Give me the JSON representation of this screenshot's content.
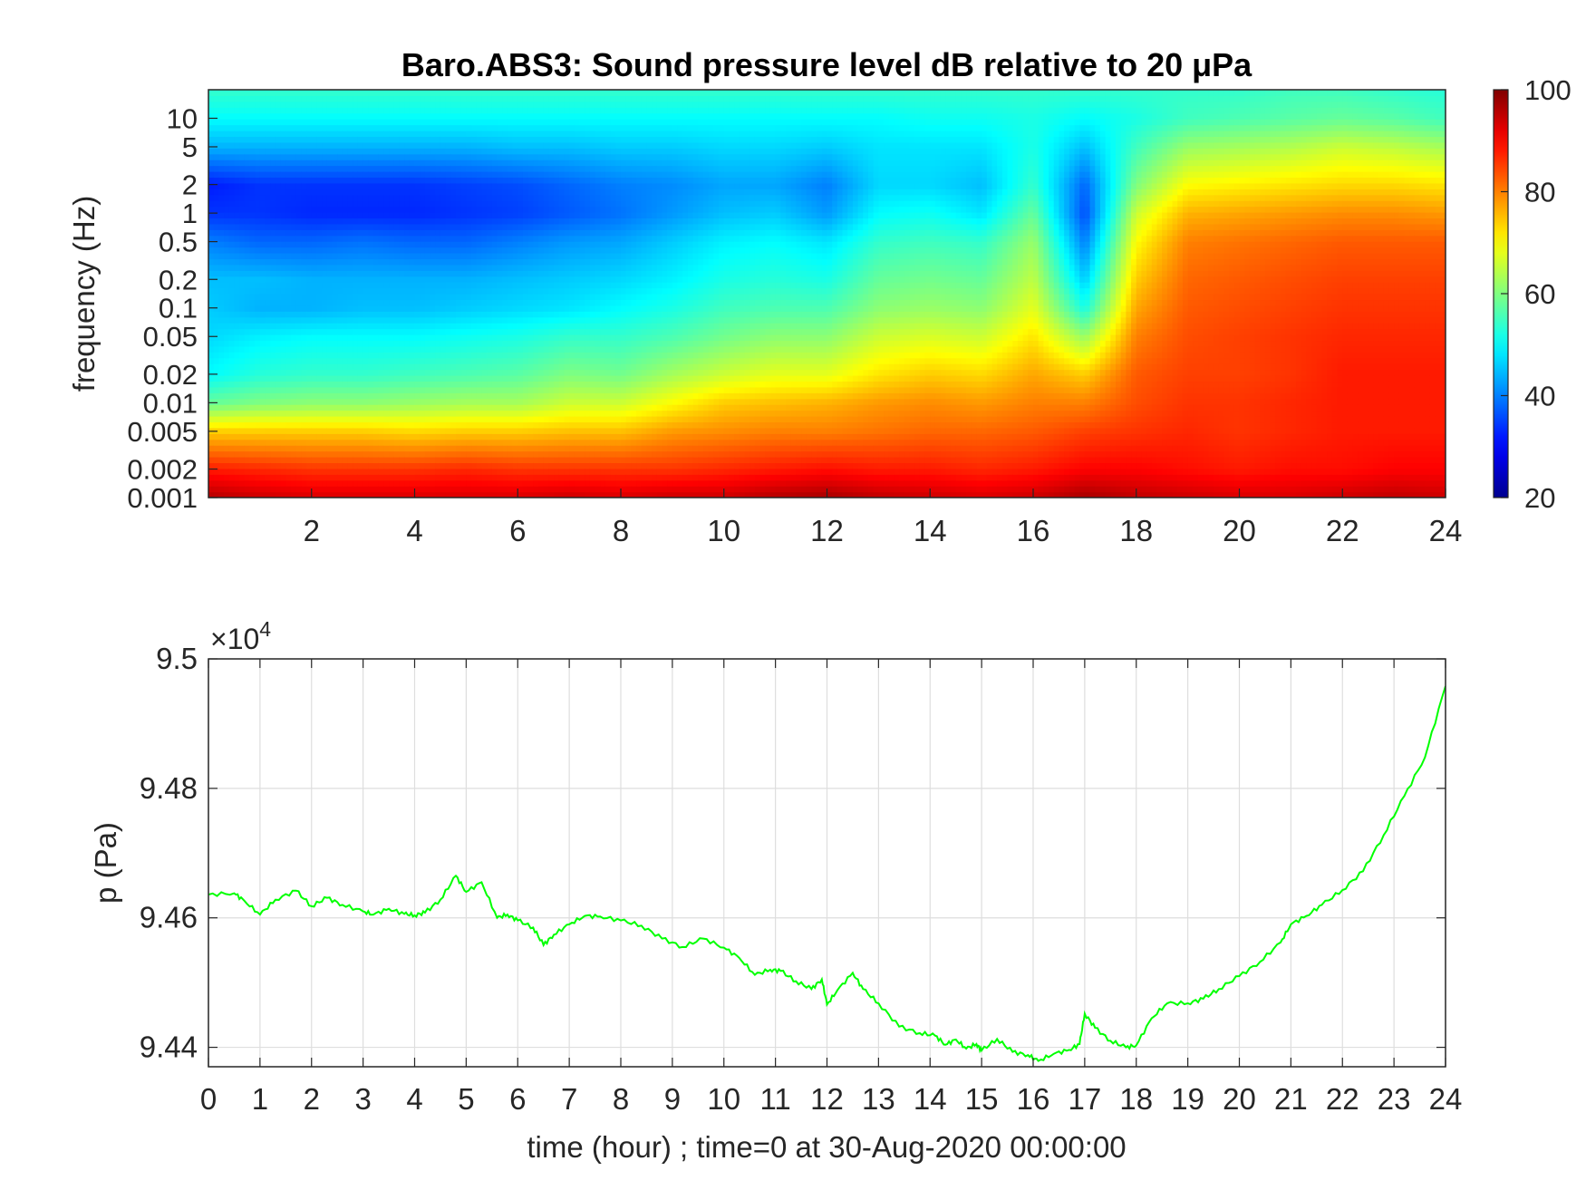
{
  "chart_data": [
    {
      "type": "heatmap",
      "title": "Baro.ABS3: Sound pressure level dB relative to 20 μPa",
      "xlabel": "",
      "ylabel": "frequency (Hz)",
      "x_scale": "linear",
      "y_scale": "log",
      "xlim": [
        0,
        24
      ],
      "ylim": [
        0.001,
        20
      ],
      "x_ticks": [
        2,
        4,
        6,
        8,
        10,
        12,
        14,
        16,
        18,
        20,
        22,
        24
      ],
      "y_ticks": [
        0.001,
        0.002,
        0.005,
        0.01,
        0.02,
        0.05,
        0.1,
        0.2,
        0.5,
        1,
        2,
        5,
        10
      ],
      "y_tick_labels": [
        "0.001",
        "0.002",
        "0.005",
        "0.01",
        "0.02",
        "0.05",
        "0.1",
        "0.2",
        "0.5",
        "1",
        "2",
        "5",
        "10"
      ],
      "colormap": "jet",
      "colorbar": {
        "range": [
          20,
          100
        ],
        "ticks": [
          20,
          40,
          60,
          80,
          100
        ],
        "placement": "right"
      },
      "colormap_colors": [
        "#00008f",
        "#0000ff",
        "#00ffff",
        "#ffff00",
        "#ff0000",
        "#800000"
      ],
      "time_hours": [
        0,
        1,
        2,
        3,
        4,
        5,
        6,
        7,
        8,
        9,
        10,
        11,
        12,
        13,
        14,
        15,
        16,
        17,
        18,
        19,
        20,
        21,
        22,
        23,
        24
      ],
      "frequencies_hz": [
        0.001,
        0.002,
        0.005,
        0.01,
        0.02,
        0.05,
        0.1,
        0.2,
        0.5,
        1,
        2,
        5,
        10,
        20
      ],
      "spl_db": [
        [
          96,
          88,
          74,
          58,
          50,
          47,
          46,
          45,
          40,
          34,
          32,
          44,
          50,
          54
        ],
        [
          94,
          87,
          74,
          60,
          53,
          49,
          44,
          45,
          38,
          34,
          34,
          44,
          50,
          54
        ],
        [
          93,
          86,
          74,
          61,
          54,
          50,
          44,
          44,
          38,
          33,
          34,
          44,
          50,
          54
        ],
        [
          93,
          86,
          74,
          61,
          54,
          50,
          45,
          44,
          39,
          33,
          34,
          44,
          50,
          54
        ],
        [
          93,
          86,
          73,
          62,
          55,
          50,
          45,
          44,
          38,
          33,
          34,
          44,
          50,
          54
        ],
        [
          93,
          87,
          74,
          63,
          56,
          51,
          46,
          44,
          38,
          34,
          35,
          44,
          50,
          54
        ],
        [
          93,
          86,
          74,
          63,
          57,
          52,
          47,
          45,
          40,
          35,
          36,
          45,
          50,
          54
        ],
        [
          94,
          86,
          75,
          66,
          60,
          54,
          48,
          46,
          42,
          37,
          38,
          45,
          50,
          54
        ],
        [
          93,
          86,
          75,
          66,
          59,
          54,
          50,
          47,
          43,
          39,
          40,
          46,
          50,
          54
        ],
        [
          94,
          86,
          78,
          70,
          63,
          56,
          52,
          49,
          46,
          42,
          41,
          46,
          50,
          54
        ],
        [
          94,
          87,
          79,
          74,
          66,
          59,
          55,
          52,
          49,
          45,
          43,
          47,
          50,
          54
        ],
        [
          96,
          88,
          80,
          75,
          68,
          61,
          56,
          53,
          50,
          46,
          43,
          47,
          50,
          54
        ],
        [
          97,
          89,
          80,
          76,
          68,
          61,
          56,
          52,
          48,
          42,
          40,
          46,
          50,
          54
        ],
        [
          95,
          88,
          81,
          78,
          72,
          66,
          61,
          58,
          54,
          50,
          47,
          48,
          50,
          54
        ],
        [
          94,
          88,
          82,
          79,
          74,
          67,
          62,
          59,
          55,
          51,
          47,
          48,
          51,
          54
        ],
        [
          93,
          87,
          82,
          78,
          73,
          66,
          61,
          58,
          54,
          48,
          45,
          48,
          51,
          54
        ],
        [
          94,
          88,
          83,
          80,
          77,
          72,
          68,
          65,
          62,
          58,
          54,
          52,
          52,
          54
        ],
        [
          97,
          90,
          85,
          80,
          74,
          62,
          52,
          46,
          40,
          36,
          38,
          45,
          50,
          54
        ],
        [
          95,
          90,
          86,
          84,
          83,
          80,
          77,
          74,
          70,
          66,
          60,
          55,
          52,
          54
        ],
        [
          94,
          89,
          87,
          86,
          85,
          84,
          83,
          82,
          80,
          76,
          70,
          62,
          55,
          54
        ],
        [
          93,
          88,
          86,
          86,
          85,
          85,
          84,
          83,
          81,
          77,
          71,
          63,
          56,
          54
        ],
        [
          93,
          89,
          87,
          87,
          86,
          86,
          85,
          84,
          82,
          78,
          72,
          64,
          57,
          55
        ],
        [
          94,
          89,
          88,
          88,
          88,
          87,
          86,
          85,
          83,
          79,
          73,
          66,
          58,
          55
        ],
        [
          95,
          90,
          88,
          88,
          88,
          87,
          86,
          85,
          83,
          79,
          73,
          65,
          57,
          54
        ],
        [
          94,
          90,
          88,
          88,
          88,
          87,
          86,
          85,
          83,
          78,
          72,
          63,
          55,
          53
        ]
      ]
    },
    {
      "type": "line",
      "title": "",
      "xlabel": "time (hour) ; time=0 at 30-Aug-2020 00:00:00",
      "ylabel": "p (Pa)",
      "y_exponent_label": "×10",
      "y_exponent_power": "4",
      "y_multiplier": 10000,
      "xlim": [
        0,
        24
      ],
      "ylim": [
        9.437,
        9.5
      ],
      "x_ticks": [
        0,
        1,
        2,
        3,
        4,
        5,
        6,
        7,
        8,
        9,
        10,
        11,
        12,
        13,
        14,
        15,
        16,
        17,
        18,
        19,
        20,
        21,
        22,
        23,
        24
      ],
      "y_ticks": [
        9.44,
        9.46,
        9.48,
        9.5
      ],
      "y_tick_labels": [
        "9.44",
        "9.46",
        "9.48",
        "9.5"
      ],
      "grid": true,
      "line_color": "#00ff00",
      "series": [
        {
          "x": [
            0,
            0.5,
            0.7,
            1.0,
            1.3,
            1.7,
            2.0,
            2.3,
            2.6,
            3.0,
            3.2,
            3.5,
            3.8,
            4.0,
            4.2,
            4.5,
            4.8,
            5.0,
            5.3,
            5.6,
            5.8,
            6.0,
            6.3,
            6.5,
            6.7,
            7.0,
            7.3,
            7.6,
            8.0,
            8.4,
            8.8,
            9.2,
            9.6,
            10.0,
            10.3,
            10.6,
            10.9,
            11.1,
            11.4,
            11.7,
            11.9,
            12.0,
            12.2,
            12.5,
            12.7,
            13.0,
            13.4,
            13.8,
            14.1,
            14.3,
            14.5,
            14.7,
            14.9,
            15.0,
            15.3,
            15.6,
            15.9,
            16.1,
            16.4,
            16.7,
            16.9,
            17.0,
            17.2,
            17.5,
            17.8,
            18.0,
            18.3,
            18.6,
            19.0,
            19.3,
            19.6,
            20.0,
            20.4,
            20.8,
            21.0,
            21.3,
            21.6,
            22.0,
            22.4,
            22.8,
            23.2,
            23.6,
            24.0
          ],
          "y": [
            9.4636,
            9.4638,
            9.4626,
            9.4605,
            9.4628,
            9.4642,
            9.4618,
            9.4631,
            9.462,
            9.461,
            9.4605,
            9.4614,
            9.4606,
            9.4604,
            9.4608,
            9.4628,
            9.4665,
            9.464,
            9.4655,
            9.46,
            9.4605,
            9.4596,
            9.4585,
            9.4558,
            9.4574,
            9.459,
            9.4603,
            9.4602,
            9.4596,
            9.4588,
            9.4568,
            9.4555,
            9.4568,
            9.4554,
            9.4538,
            9.4512,
            9.452,
            9.4518,
            9.4502,
            9.449,
            9.4505,
            9.4466,
            9.4488,
            9.4515,
            9.449,
            9.4468,
            9.4432,
            9.4422,
            9.4418,
            9.4404,
            9.4412,
            9.4398,
            9.4405,
            9.4395,
            9.4413,
            9.4393,
            9.4388,
            9.4379,
            9.439,
            9.4396,
            9.4405,
            9.4452,
            9.443,
            9.441,
            9.44,
            9.4403,
            9.4445,
            9.4468,
            9.4468,
            9.4475,
            9.449,
            9.451,
            9.4532,
            9.4562,
            9.459,
            9.4603,
            9.462,
            9.4643,
            9.4672,
            9.4728,
            9.4788,
            9.4848,
            9.4958
          ]
        }
      ]
    }
  ]
}
